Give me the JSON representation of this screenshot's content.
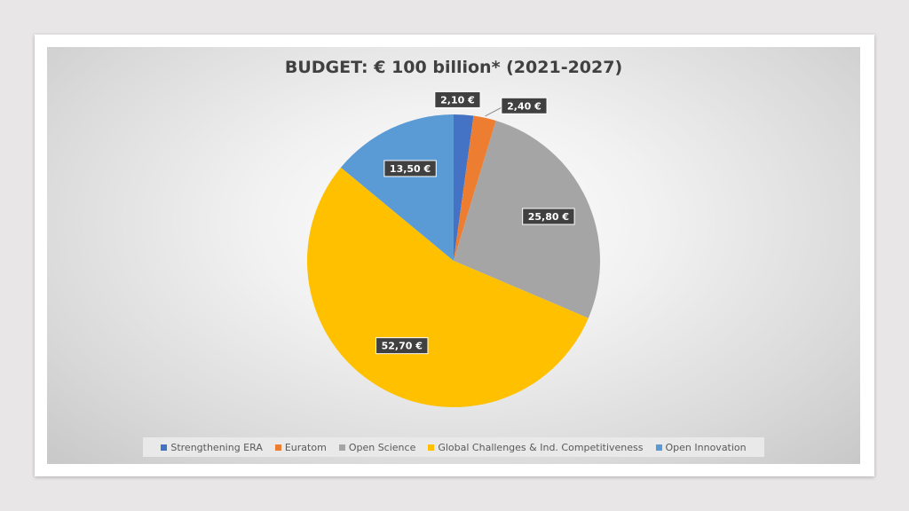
{
  "chart_data": {
    "type": "pie",
    "title": "BUDGET: € 100 billion* (2021-2027)",
    "categories": [
      "Strengthening ERA",
      "Euratom",
      "Open Science",
      "Global Challenges & Ind. Competitiveness",
      "Open Innovation"
    ],
    "values": [
      2.1,
      2.4,
      25.8,
      52.7,
      13.5
    ],
    "data_labels": [
      "2,10 €",
      "2,40 €",
      "25,80 €",
      "52,70 €",
      "13,50 €"
    ],
    "colors": [
      "#4472c4",
      "#ed7d31",
      "#a5a5a5",
      "#ffc000",
      "#5b9bd5"
    ],
    "start_angle_deg": 0,
    "direction": "clockwise",
    "legend_position": "bottom"
  }
}
